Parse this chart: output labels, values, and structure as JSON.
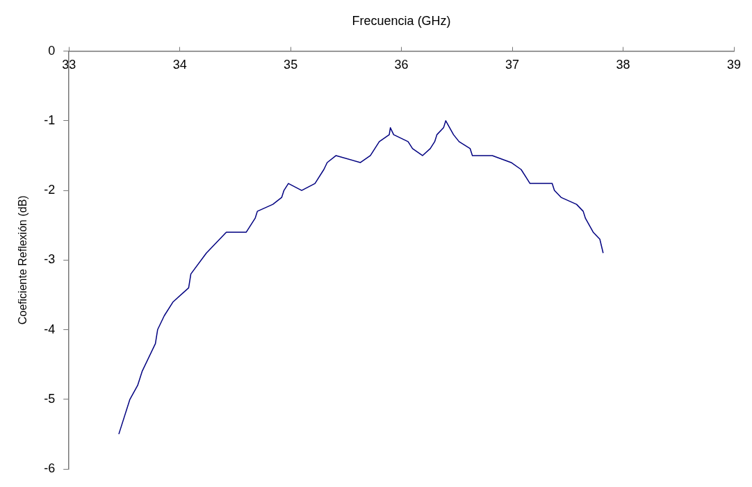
{
  "chart_data": {
    "type": "line",
    "xlabel": "Frecuencia (GHz)",
    "ylabel": "Coeficiente Reflexión (dB)",
    "xlim": [
      33,
      39
    ],
    "xticks": [
      33,
      34,
      35,
      36,
      37,
      38,
      39
    ],
    "ylim": [
      -6,
      0
    ],
    "yticks": [
      -6,
      -5,
      -4,
      -3,
      -2,
      -1,
      0
    ],
    "grid": false,
    "legend": false,
    "marker": "none",
    "line_style": "solid",
    "series": [
      {
        "color": "#000080",
        "x": [
          33.45,
          33.55,
          33.62,
          33.66,
          33.78,
          33.8,
          33.86,
          33.94,
          34.08,
          34.1,
          34.24,
          34.42,
          34.6,
          34.68,
          34.7,
          34.84,
          34.92,
          34.94,
          34.98,
          35.1,
          35.22,
          35.3,
          35.33,
          35.41,
          35.63,
          35.72,
          35.8,
          35.89,
          35.9,
          35.93,
          36.06,
          36.1,
          36.19,
          36.26,
          36.3,
          36.32,
          36.38,
          36.4,
          36.47,
          36.52,
          36.62,
          36.64,
          36.82,
          36.99,
          37.08,
          37.16,
          37.36,
          37.38,
          37.44,
          37.58,
          37.64,
          37.66,
          37.73,
          37.79,
          37.82
        ],
        "values": [
          -5.5,
          -5.0,
          -4.8,
          -4.6,
          -4.2,
          -4.0,
          -3.8,
          -3.6,
          -3.4,
          -3.2,
          -2.9,
          -2.6,
          -2.6,
          -2.4,
          -2.3,
          -2.2,
          -2.1,
          -2.0,
          -1.9,
          -2.0,
          -1.9,
          -1.7,
          -1.6,
          -1.5,
          -1.6,
          -1.5,
          -1.3,
          -1.2,
          -1.1,
          -1.2,
          -1.3,
          -1.4,
          -1.5,
          -1.4,
          -1.3,
          -1.2,
          -1.1,
          -1.0,
          -1.2,
          -1.3,
          -1.4,
          -1.5,
          -1.5,
          -1.6,
          -1.7,
          -1.9,
          -1.9,
          -2.0,
          -2.1,
          -2.2,
          -2.3,
          -2.4,
          -2.6,
          -2.7,
          -2.9
        ]
      }
    ]
  }
}
